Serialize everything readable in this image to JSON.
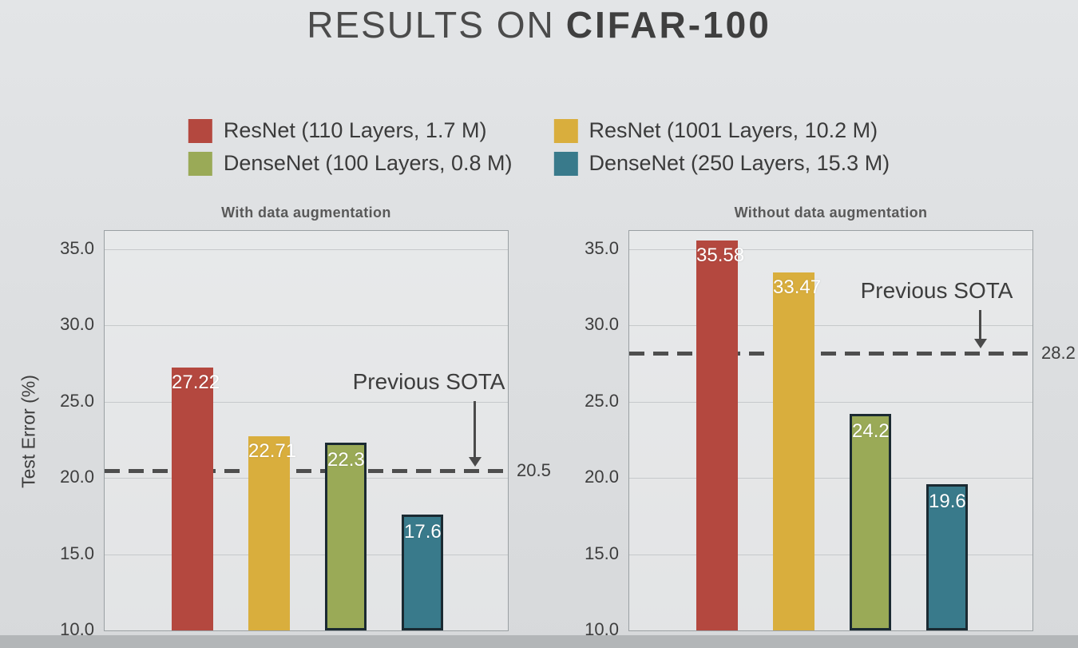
{
  "slide": {
    "title_regular": "RESULTS ON",
    "title_bold": "CIFAR-100"
  },
  "legend": {
    "position": "top",
    "items": [
      {
        "label": "ResNet (110 Layers, 1.7 M)",
        "color": "#b4483f"
      },
      {
        "label": "ResNet (1001 Layers, 10.2 M)",
        "color": "#d9ae3d"
      },
      {
        "label": "DenseNet (100 Layers, 0.8 M)",
        "color": "#9aaa57"
      },
      {
        "label": "DenseNet (250 Layers, 15.3 M)",
        "color": "#397a8b"
      }
    ]
  },
  "chart_data": [
    {
      "type": "bar",
      "title": "With data augmentation",
      "ylabel": "Test Error (%)",
      "ylim": [
        10,
        36.2
      ],
      "yticks": [
        10.0,
        15.0,
        20.0,
        25.0,
        30.0,
        35.0
      ],
      "grid": true,
      "categories": [
        "ResNet (110 Layers, 1.7 M)",
        "ResNet (1001 Layers, 10.2 M)",
        "DenseNet (100 Layers, 0.8 M)",
        "DenseNet (250 Layers, 15.3 M)"
      ],
      "values": [
        27.22,
        22.71,
        22.3,
        17.6
      ],
      "value_labels": [
        "27.22",
        "22.71",
        "22.3",
        "17.6"
      ],
      "bar_colors": [
        "#b4483f",
        "#d9ae3d",
        "#9aaa57",
        "#397a8b"
      ],
      "outlined": [
        false,
        false,
        true,
        true
      ],
      "sota": {
        "label": "Previous SOTA",
        "value": 20.5,
        "value_label": "20.5"
      }
    },
    {
      "type": "bar",
      "title": "Without data augmentation",
      "ylabel": "Test Error (%)",
      "ylim": [
        10,
        36.2
      ],
      "yticks": [
        10.0,
        15.0,
        20.0,
        25.0,
        30.0,
        35.0
      ],
      "grid": true,
      "categories": [
        "ResNet (110 Layers, 1.7 M)",
        "ResNet (1001 Layers, 10.2 M)",
        "DenseNet (100 Layers, 0.8 M)",
        "DenseNet (250 Layers, 15.3 M)"
      ],
      "values": [
        35.58,
        33.47,
        24.2,
        19.6
      ],
      "value_labels": [
        "35.58",
        "33.47",
        "24.2",
        "19.6"
      ],
      "bar_colors": [
        "#b4483f",
        "#d9ae3d",
        "#9aaa57",
        "#397a8b"
      ],
      "outlined": [
        false,
        false,
        true,
        true
      ],
      "sota": {
        "label": "Previous SOTA",
        "value": 28.2,
        "value_label": "28.2"
      }
    }
  ]
}
